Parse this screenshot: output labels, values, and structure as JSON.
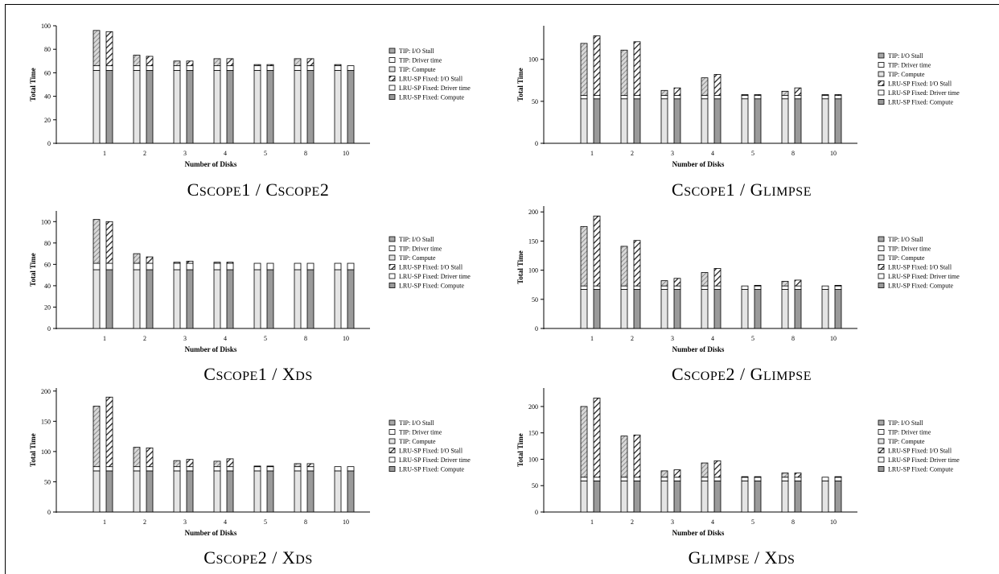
{
  "chart_data": [
    {
      "type": "bar",
      "caption": "CSCOPE1 / CSCOPE2",
      "xlabel": "Number of Disks",
      "ylabel": "Total Time",
      "ylim": [
        0,
        100
      ],
      "yticks": [
        0,
        20,
        40,
        60,
        80,
        100
      ],
      "categories": [
        "1",
        "2",
        "3",
        "4",
        "5",
        "8",
        "10"
      ],
      "series": [
        {
          "name": "TIP:  I/O Stall",
          "values": [
            30,
            9,
            4,
            6,
            1,
            6,
            1
          ]
        },
        {
          "name": "TIP:  Driver time",
          "values": [
            4,
            4,
            4,
            4,
            4,
            4,
            4
          ]
        },
        {
          "name": "TIP:  Compute",
          "values": [
            62,
            62,
            62,
            62,
            62,
            62,
            62
          ]
        },
        {
          "name": "LRU-SP Fixed:  I/O Stall",
          "values": [
            29,
            8,
            4,
            6,
            1,
            6,
            0
          ]
        },
        {
          "name": "LRU-SP Fixed:  Driver time",
          "values": [
            4,
            4,
            4,
            4,
            4,
            4,
            4
          ]
        },
        {
          "name": "LRU-SP Fixed:  Compute",
          "values": [
            62,
            62,
            62,
            62,
            62,
            62,
            62
          ]
        }
      ]
    },
    {
      "type": "bar",
      "caption": "CSCOPE1 / GLIMPSE",
      "xlabel": "Number of Disks",
      "ylabel": "Total Time",
      "ylim": [
        0,
        140
      ],
      "yticks": [
        0,
        50,
        100
      ],
      "categories": [
        "1",
        "2",
        "3",
        "4",
        "5",
        "8",
        "10"
      ],
      "series": [
        {
          "name": "TIP:  I/O Stall",
          "values": [
            62,
            54,
            6,
            21,
            1,
            5,
            1
          ]
        },
        {
          "name": "TIP:  Driver time",
          "values": [
            4,
            4,
            4,
            4,
            4,
            4,
            4
          ]
        },
        {
          "name": "TIP:  Compute",
          "values": [
            53,
            53,
            53,
            53,
            53,
            53,
            53
          ]
        },
        {
          "name": "LRU-SP Fixed:  I/O Stall",
          "values": [
            71,
            64,
            9,
            25,
            1,
            9,
            1
          ]
        },
        {
          "name": "LRU-SP Fixed:  Driver time",
          "values": [
            4,
            4,
            4,
            4,
            4,
            4,
            4
          ]
        },
        {
          "name": "LRU-SP Fixed:  Compute",
          "values": [
            53,
            53,
            53,
            53,
            53,
            53,
            53
          ]
        }
      ]
    },
    {
      "type": "bar",
      "caption": "CSCOPE1 / XDS",
      "xlabel": "Number of Disks",
      "ylabel": "Total Time",
      "ylim": [
        0,
        110
      ],
      "yticks": [
        0,
        20,
        40,
        60,
        80,
        100
      ],
      "categories": [
        "1",
        "2",
        "3",
        "4",
        "5",
        "8",
        "10"
      ],
      "series": [
        {
          "name": "TIP:  I/O Stall",
          "values": [
            41,
            9,
            1,
            1,
            0,
            0,
            0
          ]
        },
        {
          "name": "TIP:  Driver time",
          "values": [
            6,
            6,
            6,
            6,
            6,
            6,
            6
          ]
        },
        {
          "name": "TIP:  Compute",
          "values": [
            55,
            55,
            55,
            55,
            55,
            55,
            55
          ]
        },
        {
          "name": "LRU-SP Fixed:  I/O Stall",
          "values": [
            39,
            6,
            2,
            1,
            0,
            0,
            0
          ]
        },
        {
          "name": "LRU-SP Fixed:  Driver time",
          "values": [
            6,
            6,
            6,
            6,
            6,
            6,
            6
          ]
        },
        {
          "name": "LRU-SP Fixed:  Compute",
          "values": [
            55,
            55,
            55,
            55,
            55,
            55,
            55
          ]
        }
      ]
    },
    {
      "type": "bar",
      "caption": "CSCOPE2 / GLIMPSE",
      "xlabel": "Number of Disks",
      "ylabel": "Total Time",
      "ylim": [
        0,
        210
      ],
      "yticks": [
        0,
        50,
        100,
        150,
        200
      ],
      "categories": [
        "1",
        "2",
        "3",
        "4",
        "5",
        "8",
        "10"
      ],
      "series": [
        {
          "name": "TIP:  I/O Stall",
          "values": [
            102,
            68,
            9,
            23,
            0,
            8,
            0
          ]
        },
        {
          "name": "TIP:  Driver time",
          "values": [
            6,
            6,
            6,
            6,
            6,
            6,
            6
          ]
        },
        {
          "name": "TIP:  Compute",
          "values": [
            67,
            67,
            67,
            67,
            67,
            67,
            67
          ]
        },
        {
          "name": "LRU-SP Fixed:  I/O Stall",
          "values": [
            120,
            78,
            13,
            30,
            1,
            10,
            1
          ]
        },
        {
          "name": "LRU-SP Fixed:  Driver time",
          "values": [
            6,
            6,
            6,
            6,
            6,
            6,
            6
          ]
        },
        {
          "name": "LRU-SP Fixed:  Compute",
          "values": [
            67,
            67,
            67,
            67,
            67,
            67,
            67
          ]
        }
      ]
    },
    {
      "type": "bar",
      "caption": "CSCOPE2 / XDS",
      "xlabel": "Number of Disks",
      "ylabel": "Total Time",
      "ylim": [
        0,
        205
      ],
      "yticks": [
        0,
        50,
        100,
        150,
        200
      ],
      "categories": [
        "1",
        "2",
        "3",
        "4",
        "5",
        "8",
        "10"
      ],
      "series": [
        {
          "name": "TIP:  I/O Stall",
          "values": [
            100,
            32,
            10,
            9,
            1,
            5,
            0
          ]
        },
        {
          "name": "TIP:  Driver time",
          "values": [
            7,
            7,
            7,
            7,
            7,
            7,
            7
          ]
        },
        {
          "name": "TIP:  Compute",
          "values": [
            68,
            68,
            68,
            68,
            68,
            68,
            68
          ]
        },
        {
          "name": "LRU-SP Fixed:  I/O Stall",
          "values": [
            115,
            31,
            12,
            13,
            1,
            5,
            0
          ]
        },
        {
          "name": "LRU-SP Fixed:  Driver time",
          "values": [
            7,
            7,
            7,
            7,
            7,
            7,
            7
          ]
        },
        {
          "name": "LRU-SP Fixed:  Compute",
          "values": [
            68,
            68,
            68,
            68,
            68,
            68,
            68
          ]
        }
      ]
    },
    {
      "type": "bar",
      "caption": "GLIMPSE / XDS",
      "xlabel": "Number of Disks",
      "ylabel": "Total Time",
      "ylim": [
        0,
        235
      ],
      "yticks": [
        0,
        50,
        100,
        150,
        200
      ],
      "categories": [
        "1",
        "2",
        "3",
        "4",
        "5",
        "8",
        "10"
      ],
      "series": [
        {
          "name": "TIP:  I/O Stall",
          "values": [
            134,
            78,
            12,
            27,
            1,
            8,
            0
          ]
        },
        {
          "name": "TIP:  Driver time",
          "values": [
            7,
            7,
            7,
            7,
            7,
            7,
            7
          ]
        },
        {
          "name": "TIP:  Compute",
          "values": [
            59,
            59,
            59,
            59,
            59,
            59,
            59
          ]
        },
        {
          "name": "LRU-SP Fixed:  I/O Stall",
          "values": [
            150,
            80,
            14,
            31,
            1,
            8,
            1
          ]
        },
        {
          "name": "LRU-SP Fixed:  Driver time",
          "values": [
            7,
            7,
            7,
            7,
            7,
            7,
            7
          ]
        },
        {
          "name": "LRU-SP Fixed:  Compute",
          "values": [
            59,
            59,
            59,
            59,
            59,
            59,
            59
          ]
        }
      ]
    }
  ]
}
